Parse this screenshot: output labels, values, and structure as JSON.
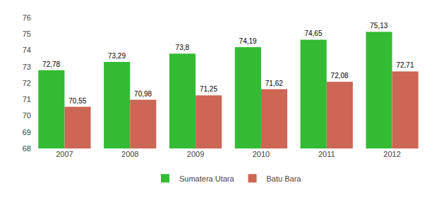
{
  "chart_data": {
    "type": "bar",
    "categories": [
      "2007",
      "2008",
      "2009",
      "2010",
      "2011",
      "2012"
    ],
    "series": [
      {
        "name": "Sumatera Utara",
        "color": "#33BB33",
        "values": [
          72.78,
          73.29,
          73.8,
          74.19,
          74.65,
          75.13
        ],
        "value_labels": [
          "72,78",
          "73,29",
          "73,8",
          "74,19",
          "74,65",
          "75,13"
        ]
      },
      {
        "name": "Batu Bara",
        "color": "#CC6655",
        "values": [
          70.55,
          70.98,
          71.25,
          71.62,
          72.08,
          72.71
        ],
        "value_labels": [
          "70,55",
          "70,98",
          "71,25",
          "71,62",
          "72,08",
          "72,71"
        ]
      }
    ],
    "ylim": [
      68,
      76
    ],
    "yticks": [
      68,
      69,
      70,
      71,
      72,
      73,
      74,
      75,
      76
    ],
    "grid": false,
    "legend": "bottom",
    "data_labels": true
  }
}
